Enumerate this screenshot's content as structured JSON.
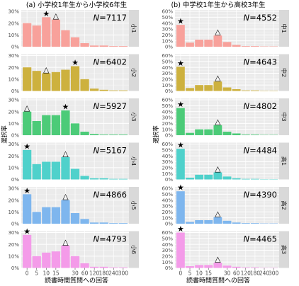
{
  "figure": {
    "ylabel": "選択率",
    "xlabel": "読書時間質問への回答"
  },
  "chart_data": [
    {
      "type": "bar",
      "title": "(a) 小学校1年生から小学校6年生",
      "categories": [
        "0",
        "5",
        "10",
        "15",
        "20",
        "30",
        "60",
        "120",
        "180",
        "240",
        "300"
      ],
      "x_tick_labels": [
        "0",
        "5",
        "10",
        "15",
        "30",
        "60",
        "120",
        "180",
        "240",
        "300"
      ],
      "y_tick_labels": [
        "0%",
        "10%",
        "20%",
        "30%"
      ],
      "ylim": [
        0,
        30
      ],
      "grid": true,
      "panels": [
        {
          "label": "小1",
          "N": "N=7117",
          "color": "#F8A19B",
          "values": [
            20,
            18,
            25,
            23,
            14,
            8,
            3,
            1,
            1,
            0.5,
            0.5
          ],
          "star": 2,
          "triangle": 3
        },
        {
          "label": "小2",
          "N": "N=6402",
          "color": "#CDB13E",
          "values": [
            20,
            17,
            15,
            16,
            18,
            21,
            10,
            2,
            1,
            0.5,
            0.5
          ],
          "star": 5,
          "triangle": 2
        },
        {
          "label": "小3",
          "N": "N=5927",
          "color": "#4CCB78",
          "values": [
            20,
            12,
            17,
            17,
            21,
            10,
            3,
            1,
            0.5,
            0.5,
            0.5
          ],
          "star": 4,
          "triangle": 0
        },
        {
          "label": "小4",
          "N": "N=5167",
          "color": "#4FD1CB",
          "values": [
            25,
            13,
            15,
            15,
            19,
            9,
            3,
            1,
            1,
            0.5,
            0.5
          ],
          "star": 0,
          "triangle": 4
        },
        {
          "label": "小5",
          "N": "N=4866",
          "color": "#7EB6EE",
          "values": [
            25,
            10,
            14,
            14,
            20,
            9,
            4,
            1,
            1,
            0.5,
            0.5
          ],
          "star": 0,
          "triangle": 4
        },
        {
          "label": "小6",
          "N": "N=4793",
          "color": "#F49BE9",
          "values": [
            28,
            10,
            13,
            14,
            19,
            10,
            4,
            1,
            1,
            0.5,
            0.5
          ],
          "star": 0,
          "triangle": 4
        }
      ]
    },
    {
      "type": "bar",
      "title": "(b) 中学校1年生から高校3年生",
      "categories": [
        "0",
        "5",
        "10",
        "15",
        "20",
        "30",
        "60",
        "120",
        "180",
        "240",
        "300"
      ],
      "x_tick_labels": [
        "0",
        "5",
        "10",
        "15",
        "30",
        "60",
        "120",
        "180",
        "240",
        "300"
      ],
      "y_tick_labels": [
        "0%",
        "10%",
        "20%",
        "30%",
        "40%",
        "50%",
        "60%"
      ],
      "ylim": [
        0,
        60
      ],
      "grid": true,
      "panels": [
        {
          "label": "中1",
          "N": "N=4552",
          "color": "#F8A19B",
          "values": [
            37,
            7,
            12,
            12,
            19,
            8,
            3,
            1,
            1,
            0.5,
            0.5
          ],
          "star": 0,
          "triangle": 4
        },
        {
          "label": "中2",
          "N": "N=4643",
          "color": "#CDB13E",
          "values": [
            41,
            5,
            10,
            10,
            16,
            6,
            3,
            1,
            1,
            0.5,
            0.5
          ],
          "star": 0,
          "triangle": 4
        },
        {
          "label": "中3",
          "N": "N=4802",
          "color": "#4CCB78",
          "values": [
            46,
            4,
            10,
            10,
            17,
            6,
            3,
            1,
            1,
            0.5,
            0.5
          ],
          "star": 0,
          "triangle": 4
        },
        {
          "label": "高1",
          "N": "N=4484",
          "color": "#4FD1CB",
          "values": [
            52,
            3,
            8,
            8,
            12,
            5,
            2,
            1,
            1,
            0.5,
            0.5
          ],
          "star": 0,
          "triangle": 4
        },
        {
          "label": "高2",
          "N": "N=4390",
          "color": "#7EB6EE",
          "values": [
            55,
            3,
            6,
            6,
            11,
            5,
            2,
            1,
            1,
            0.5,
            0.5
          ],
          "star": 0,
          "triangle": 4
        },
        {
          "label": "高3",
          "N": "N=4465",
          "color": "#F49BE9",
          "values": [
            60,
            3,
            5,
            5,
            9,
            4,
            2,
            1,
            1,
            0.5,
            0.5
          ],
          "star": 0,
          "triangle": 4
        }
      ]
    }
  ],
  "markers": {
    "star": "★",
    "triangle": "△"
  }
}
